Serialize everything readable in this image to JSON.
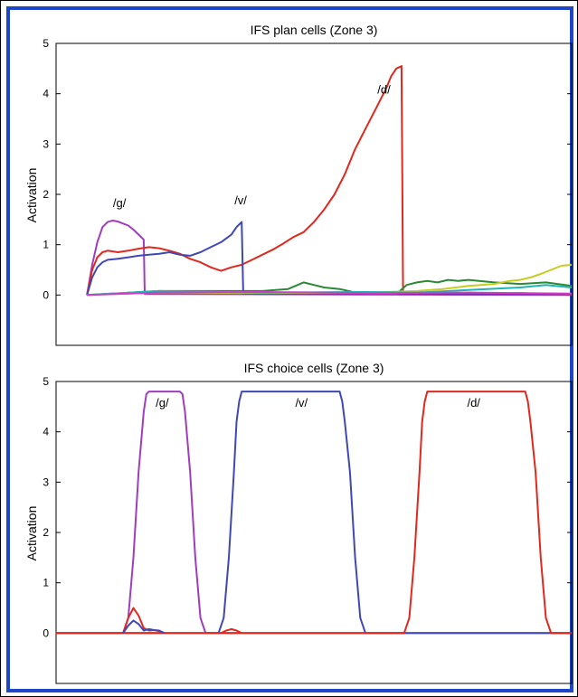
{
  "chart_data": [
    {
      "type": "line",
      "title": "IFS plan cells (Zone 3)",
      "ylabel": "Activation",
      "ylim": [
        -1,
        5
      ],
      "yticks": [
        0,
        1,
        2,
        3,
        4,
        5
      ],
      "xlim": [
        0,
        100
      ],
      "annotations": [
        {
          "text": "/g/",
          "x": 12.3,
          "y": 1.75
        },
        {
          "text": "/v/",
          "x": 35.8,
          "y": 1.8
        },
        {
          "text": "/d/",
          "x": 63.6,
          "y": 4.0
        }
      ],
      "series": [
        {
          "color": "#a03cc0",
          "x": [
            6,
            7,
            8,
            9,
            10,
            11,
            12,
            13,
            14,
            15,
            16,
            17,
            17.2,
            100
          ],
          "y": [
            0,
            0.6,
            1.05,
            1.35,
            1.45,
            1.48,
            1.46,
            1.42,
            1.38,
            1.3,
            1.2,
            1.1,
            0.02,
            0
          ]
        },
        {
          "color": "#e0281e",
          "x": [
            6,
            7,
            8,
            9,
            10,
            12,
            14,
            16,
            18,
            20,
            22,
            24,
            26,
            28,
            30,
            32,
            34,
            36,
            38,
            40,
            42,
            44,
            46,
            48,
            50,
            52,
            54,
            56,
            58,
            60,
            62,
            64,
            65,
            66,
            67,
            67.3,
            70,
            75,
            80,
            85,
            90,
            95,
            100
          ],
          "y": [
            0,
            0.5,
            0.75,
            0.85,
            0.88,
            0.85,
            0.88,
            0.92,
            0.95,
            0.93,
            0.88,
            0.82,
            0.72,
            0.65,
            0.55,
            0.48,
            0.55,
            0.6,
            0.7,
            0.8,
            0.9,
            1.02,
            1.15,
            1.25,
            1.45,
            1.7,
            2.0,
            2.4,
            2.9,
            3.3,
            3.7,
            4.1,
            4.35,
            4.5,
            4.55,
            0.05,
            0.03,
            0.02,
            0.05,
            0.03,
            0.04,
            0.02,
            0.01
          ]
        },
        {
          "color": "#3f48b4",
          "x": [
            6,
            7,
            8,
            9,
            10,
            12,
            14,
            16,
            18,
            20,
            22,
            24,
            26,
            28,
            30,
            32,
            34,
            35,
            36,
            36.3,
            40,
            60,
            80,
            100
          ],
          "y": [
            0,
            0.35,
            0.55,
            0.65,
            0.7,
            0.72,
            0.75,
            0.78,
            0.8,
            0.82,
            0.85,
            0.8,
            0.78,
            0.85,
            0.95,
            1.05,
            1.2,
            1.35,
            1.45,
            0.03,
            0.02,
            0.03,
            0.02,
            0.02
          ]
        },
        {
          "color": "#2a8a32",
          "x": [
            6,
            20,
            40,
            45,
            48,
            50,
            52,
            55,
            58,
            62,
            66,
            68,
            70,
            72,
            74,
            76,
            78,
            80,
            85,
            90,
            95,
            100
          ],
          "y": [
            0,
            0.08,
            0.08,
            0.12,
            0.25,
            0.2,
            0.15,
            0.12,
            0.05,
            0.03,
            0.02,
            0.2,
            0.25,
            0.28,
            0.25,
            0.3,
            0.28,
            0.3,
            0.25,
            0.22,
            0.25,
            0.18
          ]
        },
        {
          "color": "#c8cc1e",
          "x": [
            6,
            20,
            40,
            60,
            70,
            75,
            80,
            85,
            88,
            90,
            92,
            94,
            96,
            98,
            100
          ],
          "y": [
            0,
            0.05,
            0.04,
            0.05,
            0.08,
            0.12,
            0.18,
            0.22,
            0.28,
            0.3,
            0.35,
            0.42,
            0.5,
            0.58,
            0.6
          ]
        },
        {
          "color": "#20b4b4",
          "x": [
            6,
            20,
            40,
            60,
            70,
            80,
            90,
            95,
            100
          ],
          "y": [
            0,
            0.08,
            0.05,
            0.06,
            0.05,
            0.1,
            0.15,
            0.2,
            0.15
          ]
        },
        {
          "color": "#d23cc8",
          "x": [
            6,
            20,
            40,
            60,
            80,
            100
          ],
          "y": [
            0,
            0.05,
            0.06,
            0.04,
            0.05,
            0.03
          ]
        }
      ]
    },
    {
      "type": "line",
      "title": "IFS choice cells (Zone 3)",
      "ylabel": "Activation",
      "ylim": [
        -1,
        5
      ],
      "yticks": [
        0,
        1,
        2,
        3,
        4,
        5
      ],
      "xlim": [
        0,
        100
      ],
      "annotations": [
        {
          "text": "/g/",
          "x": 20.6,
          "y": 4.5
        },
        {
          "text": "/v/",
          "x": 47.6,
          "y": 4.5
        },
        {
          "text": "/d/",
          "x": 81.0,
          "y": 4.5
        }
      ],
      "series": [
        {
          "color": "#a03cc0",
          "x": [
            0,
            13,
            14,
            15,
            16,
            17,
            17.5,
            18,
            24,
            24.5,
            25,
            26,
            27,
            28,
            29,
            100
          ],
          "y": [
            0,
            0,
            0.3,
            1.5,
            3.2,
            4.4,
            4.75,
            4.8,
            4.8,
            4.75,
            4.4,
            3.2,
            1.5,
            0.3,
            0,
            0
          ]
        },
        {
          "color": "#3f48b4",
          "x": [
            0,
            31.5,
            32.5,
            33.5,
            34.5,
            35,
            35.5,
            36,
            55,
            55.5,
            56,
            57,
            58,
            59,
            60,
            100
          ],
          "y": [
            0,
            0,
            0.3,
            1.5,
            3.2,
            4.2,
            4.6,
            4.8,
            4.8,
            4.6,
            4.2,
            3.2,
            1.5,
            0.3,
            0,
            0
          ]
        },
        {
          "color": "#e0281e",
          "x": [
            0,
            67.5,
            68.5,
            69.5,
            70.5,
            71,
            71.5,
            72,
            91,
            91.5,
            92,
            93,
            94,
            95,
            96,
            100
          ],
          "y": [
            0,
            0,
            0.3,
            1.5,
            3.2,
            4.2,
            4.6,
            4.8,
            4.8,
            4.6,
            4.2,
            3.2,
            1.5,
            0.3,
            0,
            0
          ]
        },
        {
          "color": "#e0281e",
          "x": [
            13,
            14,
            15,
            16,
            17,
            18,
            19,
            20,
            21
          ],
          "y": [
            0,
            0.3,
            0.5,
            0.35,
            0.1,
            0.05,
            0.06,
            0.04,
            0
          ]
        },
        {
          "color": "#e0281e",
          "x": [
            32,
            33,
            34,
            35,
            36
          ],
          "y": [
            0,
            0.05,
            0.08,
            0.05,
            0
          ]
        },
        {
          "color": "#3f48b4",
          "x": [
            13,
            14,
            15,
            16,
            17,
            18,
            19,
            20,
            21
          ],
          "y": [
            0,
            0.15,
            0.25,
            0.18,
            0.05,
            0.08,
            0.06,
            0.05,
            0
          ]
        }
      ]
    }
  ]
}
